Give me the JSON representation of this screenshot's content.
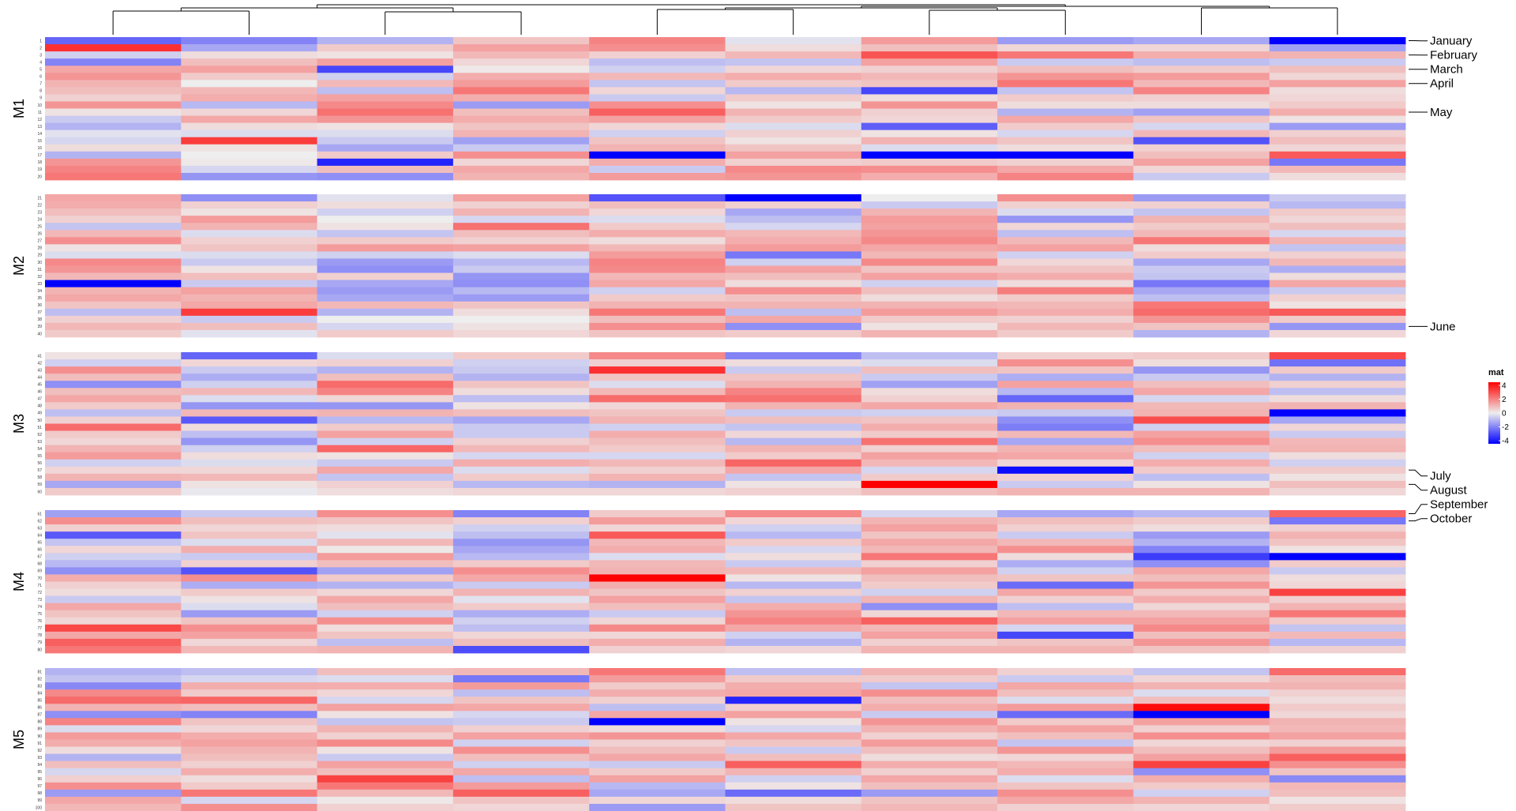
{
  "chart_data": {
    "type": "heatmap",
    "title": "",
    "xlabel": "",
    "ylabel": "",
    "n_rows": 100,
    "n_cols": 10,
    "row_labels": [
      "1",
      "2",
      "3",
      "4",
      "5",
      "6",
      "7",
      "8",
      "9",
      "10",
      "11",
      "12",
      "13",
      "14",
      "15",
      "16",
      "17",
      "18",
      "19",
      "20",
      "21",
      "22",
      "23",
      "24",
      "25",
      "26",
      "27",
      "28",
      "29",
      "30",
      "31",
      "32",
      "33",
      "34",
      "35",
      "36",
      "37",
      "38",
      "39",
      "40",
      "41",
      "42",
      "43",
      "44",
      "45",
      "46",
      "47",
      "48",
      "49",
      "50",
      "51",
      "52",
      "53",
      "54",
      "55",
      "56",
      "57",
      "58",
      "59",
      "60",
      "61",
      "62",
      "63",
      "64",
      "65",
      "66",
      "67",
      "68",
      "69",
      "70",
      "71",
      "72",
      "73",
      "74",
      "75",
      "76",
      "77",
      "78",
      "79",
      "80",
      "81",
      "82",
      "83",
      "84",
      "85",
      "86",
      "87",
      "88",
      "89",
      "90",
      "91",
      "92",
      "93",
      "94",
      "95",
      "96",
      "97",
      "98",
      "99",
      "100"
    ],
    "splits": [
      {
        "label": "M1",
        "rows": [
          1,
          20
        ]
      },
      {
        "label": "M2",
        "rows": [
          21,
          40
        ]
      },
      {
        "label": "M3",
        "rows": [
          41,
          60
        ]
      },
      {
        "label": "M4",
        "rows": [
          61,
          80
        ]
      },
      {
        "label": "M5",
        "rows": [
          81,
          100
        ]
      }
    ],
    "color_scale": {
      "stops": [
        -4,
        0,
        4
      ],
      "colors": [
        "#0000ff",
        "#eeeeee",
        "#ff0000"
      ]
    },
    "legend": {
      "title": "mat",
      "ticks": [
        "4",
        "2",
        "0",
        "-2",
        "-4"
      ],
      "position": "right"
    },
    "row_annotations": [
      {
        "label": "January",
        "row": 1
      },
      {
        "label": "February",
        "row": 3
      },
      {
        "label": "March",
        "row": 5
      },
      {
        "label": "April",
        "row": 7
      },
      {
        "label": "May",
        "row": 11
      },
      {
        "label": "June",
        "row": 39
      },
      {
        "label": "July",
        "row": 57
      },
      {
        "label": "August",
        "row": 59
      },
      {
        "label": "September",
        "row": 61
      },
      {
        "label": "October",
        "row": 62
      }
    ],
    "column_dendrogram": true,
    "values": [
      [
        -2.3,
        3.2,
        -0.5,
        -1.8,
        1.2,
        1.5,
        1.0,
        0.8,
        0.5,
        1.5,
        0.2,
        -0.6,
        -1.0,
        -0.2,
        -0.4,
        0.3,
        -1.0,
        1.5,
        1.8,
        2.0,
        1.2,
        1.1,
        0.8,
        0.5,
        -0.7,
        0.9,
        1.6,
        0.2,
        -0.3,
        1.7,
        1.5,
        0.9,
        -4.0,
        1.0,
        1.2,
        0.7,
        -0.8,
        0.5,
        0.9,
        0.6,
        0.2,
        -0.5,
        1.6,
        0.8,
        -1.6,
        0.8,
        1.2,
        0.6,
        -0.8,
        0.5,
        2.2,
        0.6,
        0.4,
        1.0,
        1.4,
        -0.5,
        0.4,
        1.0,
        -1.2,
        0.6,
        -1.3,
        1.6,
        0.5,
        -2.5,
        -0.7,
        0.4,
        -0.5,
        -0.9,
        -1.6,
        1.1,
        0.5,
        0.3,
        -0.6,
        1.2,
        0.7,
        0.4,
        2.8,
        1.2,
        2.4,
        2.0,
        -1.0,
        -0.7,
        -1.7,
        1.7,
        2.2,
        1.0,
        -1.6,
        1.8,
        -0.3,
        1.4,
        1.1,
        0.3,
        -1.0,
        0.8,
        -0.4,
        0.5,
        1.6,
        -1.4,
        1.2,
        0.9
      ],
      [
        -1.8,
        -1.2,
        0.3,
        0.8,
        1.3,
        0.6,
        0.0,
        0.9,
        1.1,
        -0.9,
        0.4,
        1.2,
        0.3,
        -0.3,
        3.0,
        0.2,
        0.0,
        0.1,
        -0.4,
        -1.5,
        -1.6,
        0.5,
        0.2,
        1.4,
        1.0,
        -0.3,
        0.5,
        0.7,
        -0.3,
        -0.6,
        0.2,
        0.8,
        -0.6,
        1.3,
        1.0,
        1.2,
        3.0,
        -0.6,
        0.8,
        -0.2,
        -2.3,
        0.4,
        -0.6,
        -1.1,
        -0.5,
        0.9,
        -0.3,
        -1.5,
        0.9,
        -2.5,
        0.3,
        -0.8,
        -1.5,
        -0.5,
        0.3,
        -0.3,
        0.4,
        0.9,
        0.2,
        -0.1,
        -0.6,
        0.8,
        0.4,
        0.7,
        -0.3,
        1.1,
        -0.6,
        0.5,
        -2.6,
        1.6,
        -1.1,
        0.6,
        0.2,
        -0.3,
        -1.4,
        0.7,
        1.6,
        1.3,
        0.4,
        0.9,
        -0.8,
        -0.4,
        1.1,
        0.6,
        2.3,
        0.8,
        -1.8,
        0.7,
        0.4,
        1.1,
        1.3,
        1.0,
        0.8,
        0.5,
        1.1,
        0.3,
        0.6,
        2.0,
        -0.4,
        1.6
      ],
      [
        -1.0,
        0.6,
        0.2,
        1.3,
        -2.8,
        -0.5,
        0.9,
        -0.8,
        1.3,
        1.7,
        2.1,
        1.5,
        0.2,
        -0.3,
        -0.6,
        -1.2,
        0.6,
        -3.4,
        0.8,
        -1.6,
        -0.2,
        0.3,
        -0.5,
        0.0,
        0.2,
        -0.7,
        0.6,
        1.4,
        -0.5,
        -1.4,
        -1.6,
        0.5,
        -1.2,
        -1.4,
        -1.2,
        0.9,
        -1.0,
        0.0,
        -0.4,
        0.6,
        -0.3,
        0.5,
        -1.0,
        0.8,
        2.2,
        1.8,
        0.4,
        -1.5,
        1.0,
        -0.9,
        0.6,
        1.3,
        -0.5,
        2.3,
        0.2,
        -0.6,
        1.2,
        -0.7,
        0.5,
        0.3,
        1.6,
        0.7,
        0.3,
        -0.2,
        0.9,
        0.1,
        1.4,
        0.8,
        -1.3,
        0.6,
        -1.0,
        0.4,
        1.2,
        0.8,
        -0.5,
        1.6,
        0.3,
        0.7,
        -0.8,
        1.0,
        0.8,
        -0.3,
        1.1,
        0.4,
        -0.4,
        1.3,
        0.2,
        -0.7,
        1.0,
        0.5,
        1.7,
        0.2,
        -0.6,
        1.3,
        0.8,
        2.9,
        2.0,
        0.9,
        0.1,
        0.5
      ],
      [
        0.7,
        1.3,
        0.9,
        0.4,
        0.1,
        1.1,
        1.4,
        2.0,
        1.1,
        -1.4,
        0.8,
        1.1,
        0.7,
        1.0,
        -1.3,
        -0.6,
        1.6,
        0.4,
        1.2,
        1.0,
        1.3,
        0.5,
        1.0,
        -0.4,
        2.1,
        0.8,
        0.5,
        1.3,
        -0.3,
        -0.9,
        -0.6,
        -1.5,
        -1.6,
        -0.9,
        -1.4,
        0.7,
        0.3,
        0.0,
        0.2,
        0.4,
        0.6,
        -0.5,
        -0.6,
        -1.0,
        0.7,
        0.3,
        -0.8,
        0.2,
        0.8,
        -1.2,
        -0.6,
        -0.6,
        0.5,
        0.9,
        -0.4,
        1.1,
        -0.3,
        0.6,
        -0.9,
        0.4,
        -1.8,
        0.5,
        -0.5,
        -0.8,
        -1.5,
        -1.2,
        -0.9,
        0.6,
        1.6,
        1.2,
        -0.6,
        1.0,
        -0.2,
        0.6,
        -1.1,
        -0.5,
        -0.8,
        0.4,
        0.8,
        -2.7,
        0.9,
        -2.0,
        1.4,
        -0.8,
        0.7,
        1.2,
        -0.4,
        -0.6,
        0.5,
        1.3,
        -0.5,
        1.6,
        0.8,
        -0.5,
        1.2,
        -0.8,
        1.4,
        2.4,
        0.7,
        0.4
      ],
      [
        1.8,
        1.6,
        0.5,
        -0.8,
        -0.5,
        0.9,
        -0.7,
        0.4,
        -0.6,
        1.6,
        2.4,
        1.3,
        0.4,
        -0.5,
        0.7,
        1.0,
        -4.0,
        1.1,
        -0.6,
        1.4,
        -2.6,
        0.8,
        0.4,
        -0.3,
        0.6,
        1.1,
        0.3,
        0.9,
        1.4,
        1.8,
        1.7,
        0.9,
        1.2,
        -0.5,
        0.6,
        1.0,
        2.0,
        0.8,
        1.6,
        0.7,
        1.7,
        0.5,
        3.2,
        0.7,
        -0.3,
        0.9,
        2.2,
        0.4,
        0.7,
        1.0,
        -0.5,
        1.1,
        0.8,
        0.6,
        -0.4,
        0.9,
        0.5,
        1.0,
        -1.0,
        0.4,
        0.6,
        1.4,
        0.4,
        2.5,
        0.9,
        1.1,
        -0.3,
        0.9,
        1.0,
        4.0,
        1.1,
        0.7,
        1.3,
        0.8,
        -0.6,
        0.4,
        1.7,
        0.4,
        1.1,
        0.5,
        2.0,
        1.4,
        0.6,
        1.1,
        0.5,
        -0.8,
        1.2,
        -4.0,
        0.3,
        1.5,
        0.5,
        0.8,
        1.2,
        -0.6,
        0.6,
        1.3,
        -0.9,
        -1.2,
        0.4,
        -1.4
      ],
      [
        -0.2,
        0.3,
        0.9,
        -0.7,
        0.4,
        1.1,
        0.6,
        -0.9,
        0.6,
        0.2,
        1.0,
        0.6,
        -0.3,
        0.5,
        0.2,
        0.7,
        1.3,
        0.5,
        1.7,
        1.5,
        -4.0,
        0.5,
        -1.2,
        -0.8,
        -0.4,
        0.9,
        1.1,
        1.4,
        -2.0,
        -0.5,
        1.3,
        0.8,
        0.3,
        1.6,
        0.7,
        1.0,
        -0.8,
        1.2,
        -1.6,
        0.6,
        -1.8,
        0.3,
        -0.6,
        0.7,
        1.0,
        1.8,
        2.1,
        1.0,
        -0.6,
        0.8,
        -0.7,
        0.4,
        -0.9,
        1.0,
        0.6,
        2.3,
        1.2,
        -0.7,
        0.2,
        0.5,
        1.7,
        0.4,
        -0.5,
        -0.9,
        0.6,
        -0.4,
        0.3,
        -0.6,
        0.9,
        0.2,
        -0.9,
        0.5,
        -0.7,
        1.1,
        1.5,
        1.8,
        1.2,
        -0.5,
        -1.0,
        0.4,
        -0.8,
        0.6,
        1.1,
        1.2,
        -3.4,
        0.5,
        1.3,
        0.2,
        -0.4,
        1.2,
        0.7,
        -0.6,
        0.8,
        2.4,
        1.0,
        -0.5,
        0.2,
        -2.2,
        0.3,
        0.7
      ],
      [
        1.4,
        0.8,
        2.6,
        1.3,
        0.5,
        0.9,
        0.7,
        -2.8,
        0.3,
        1.5,
        0.5,
        0.4,
        -2.4,
        0.2,
        1.0,
        -0.3,
        -4.0,
        0.6,
        1.6,
        1.1,
        0.0,
        -0.6,
        1.0,
        1.4,
        1.3,
        1.5,
        1.7,
        1.2,
        0.9,
        1.7,
        0.7,
        1.3,
        -0.5,
        0.8,
        0.3,
        1.0,
        1.4,
        0.6,
        0.2,
        1.0,
        -0.8,
        -0.3,
        0.8,
        -0.6,
        -1.3,
        0.3,
        0.5,
        1.2,
        -0.5,
        0.7,
        1.1,
        0.6,
        2.1,
        0.5,
        1.3,
        0.9,
        -0.4,
        0.6,
        4.0,
        0.8,
        -0.4,
        1.0,
        1.3,
        0.7,
        1.2,
        0.9,
        2.0,
        0.5,
        1.3,
        0.8,
        0.6,
        -0.5,
        1.0,
        -1.6,
        0.4,
        2.4,
        0.9,
        1.3,
        0.5,
        1.0,
        1.0,
        0.6,
        -0.7,
        1.6,
        0.8,
        1.1,
        -0.6,
        1.5,
        1.0,
        0.5,
        1.4,
        0.8,
        0.3,
        1.1,
        0.5,
        1.2,
        0.8,
        -1.4,
        0.7,
        0.9
      ],
      [
        -1.4,
        0.4,
        2.0,
        -0.6,
        0.8,
        1.5,
        2.0,
        -0.7,
        0.6,
        0.3,
        -1.0,
        1.2,
        0.6,
        -0.4,
        0.7,
        0.3,
        -4.0,
        0.5,
        1.2,
        1.8,
        1.6,
        0.5,
        -0.3,
        -1.5,
        0.4,
        -0.8,
        0.9,
        1.3,
        -0.5,
        0.4,
        0.7,
        1.1,
        0.3,
        1.9,
        0.6,
        0.9,
        1.1,
        0.5,
        0.9,
        0.6,
        0.5,
        1.6,
        0.7,
        -1.1,
        1.3,
        -0.9,
        -2.3,
        1.0,
        -0.6,
        -1.6,
        -1.9,
        0.9,
        -1.2,
        1.0,
        1.2,
        0.4,
        -3.8,
        0.5,
        -0.6,
        1.0,
        -1.2,
        0.8,
        0.5,
        -0.6,
        0.9,
        1.6,
        0.3,
        -1.1,
        -0.5,
        0.7,
        -2.2,
        1.2,
        0.5,
        -0.8,
        0.9,
        1.3,
        -0.4,
        -2.8,
        0.7,
        1.0,
        0.5,
        -0.6,
        1.2,
        0.8,
        -0.3,
        1.4,
        -2.2,
        0.6,
        1.3,
        0.8,
        -0.7,
        1.5,
        0.4,
        0.9,
        1.1,
        -0.3,
        0.7,
        1.6,
        1.2,
        0.5
      ],
      [
        -1.2,
        0.4,
        1.1,
        -0.8,
        0.6,
        1.4,
        0.9,
        1.8,
        0.5,
        0.3,
        -1.3,
        0.7,
        -0.4,
        0.9,
        -2.6,
        0.5,
        0.8,
        1.3,
        0.4,
        -0.6,
        -1.4,
        0.5,
        -0.7,
        1.0,
        0.6,
        0.9,
        2.0,
        0.3,
        0.6,
        -1.2,
        -0.6,
        -0.7,
        -2.0,
        -1.2,
        -0.8,
        2.0,
        2.2,
        1.5,
        0.7,
        -1.0,
        0.6,
        0.3,
        -1.5,
        -0.6,
        0.8,
        1.2,
        -0.4,
        0.9,
        1.0,
        2.7,
        -0.5,
        1.3,
        1.6,
        0.8,
        -0.5,
        1.1,
        0.6,
        -0.8,
        0.2,
        1.0,
        -0.9,
        0.6,
        0.3,
        -1.4,
        -1.0,
        -1.8,
        -3.0,
        -1.6,
        1.2,
        0.8,
        1.5,
        0.6,
        1.1,
        0.4,
        0.9,
        1.3,
        1.7,
        0.8,
        1.5,
        0.7,
        -0.7,
        0.4,
        1.0,
        -0.3,
        0.8,
        3.8,
        -4.0,
        1.3,
        0.5,
        1.6,
        0.4,
        0.8,
        1.3,
        2.9,
        -1.6,
        1.1,
        0.6,
        -0.5,
        1.0,
        0.4
      ],
      [
        -4.0,
        -1.3,
        1.0,
        -0.6,
        0.8,
        0.4,
        1.3,
        0.3,
        0.4,
        0.6,
        1.1,
        0.2,
        -1.4,
        0.5,
        0.8,
        0.4,
        2.5,
        -2.0,
        0.9,
        0.3,
        -0.6,
        -0.9,
        0.6,
        0.4,
        0.8,
        -0.4,
        1.0,
        -0.7,
        0.5,
        0.9,
        -1.1,
        0.3,
        1.2,
        -0.6,
        0.5,
        0.2,
        2.5,
        0.6,
        -1.5,
        0.4,
        2.8,
        -2.1,
        0.6,
        -1.0,
        0.5,
        -0.8,
        0.3,
        1.0,
        -4.0,
        -1.2,
        0.4,
        -0.6,
        0.9,
        1.0,
        0.3,
        -0.5,
        0.6,
        0.2,
        0.8,
        0.4,
        2.3,
        -2.0,
        0.5,
        1.0,
        0.7,
        0.2,
        -4.0,
        0.6,
        -0.6,
        0.3,
        0.4,
        2.9,
        0.5,
        1.0,
        2.0,
        0.6,
        -0.7,
        0.9,
        -0.9,
        0.5,
        2.2,
        0.8,
        1.0,
        0.5,
        0.3,
        0.6,
        0.4,
        1.0,
        0.9,
        1.3,
        0.5,
        1.4,
        2.4,
        1.6,
        0.7,
        -1.7,
        0.9,
        0.8,
        0.2,
        0.6
      ]
    ]
  }
}
